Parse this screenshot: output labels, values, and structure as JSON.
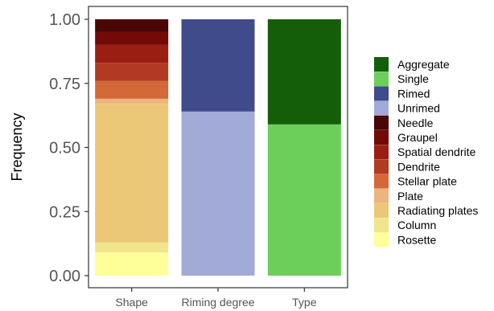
{
  "chart_data": {
    "type": "bar",
    "stacked": true,
    "categories": [
      "Shape",
      "Riming degree",
      "Type"
    ],
    "ylabel": "Frequency",
    "xlabel": "",
    "ylim": [
      0,
      1.05
    ],
    "yticks": [
      "0.00",
      "0.25",
      "0.50",
      "0.75",
      "1.00"
    ],
    "grid": false,
    "legend_position": "right",
    "legend": [
      {
        "name": "Aggregate",
        "color": "#145E0A"
      },
      {
        "name": "Single",
        "color": "#6BCF5A"
      },
      {
        "name": "Rimed",
        "color": "#3F4B8B"
      },
      {
        "name": "Unrimed",
        "color": "#A2AAD7"
      },
      {
        "name": "Needle",
        "color": "#4A0505"
      },
      {
        "name": "Graupel",
        "color": "#730A07"
      },
      {
        "name": "Spatial dendrite",
        "color": "#9A1F12"
      },
      {
        "name": "Dendrite",
        "color": "#B23A22"
      },
      {
        "name": "Stellar plate",
        "color": "#D26936"
      },
      {
        "name": "Plate",
        "color": "#ECB57E"
      },
      {
        "name": "Radiating plates",
        "color": "#EBC778"
      },
      {
        "name": "Column",
        "color": "#F1E58C"
      },
      {
        "name": "Rosette",
        "color": "#FFFF99"
      }
    ],
    "stacks": [
      {
        "category": "Shape",
        "segments": [
          {
            "name": "Rosette",
            "value": 0.09
          },
          {
            "name": "Column",
            "value": 0.04
          },
          {
            "name": "Radiating plates",
            "value": 0.54
          },
          {
            "name": "Plate",
            "value": 0.02
          },
          {
            "name": "Stellar plate",
            "value": 0.07
          },
          {
            "name": "Dendrite",
            "value": 0.07
          },
          {
            "name": "Spatial dendrite",
            "value": 0.07
          },
          {
            "name": "Graupel",
            "value": 0.05
          },
          {
            "name": "Needle",
            "value": 0.05
          }
        ]
      },
      {
        "category": "Riming degree",
        "segments": [
          {
            "name": "Unrimed",
            "value": 0.64
          },
          {
            "name": "Rimed",
            "value": 0.36
          }
        ]
      },
      {
        "category": "Type",
        "segments": [
          {
            "name": "Single",
            "value": 0.59
          },
          {
            "name": "Aggregate",
            "value": 0.41
          }
        ]
      }
    ]
  }
}
